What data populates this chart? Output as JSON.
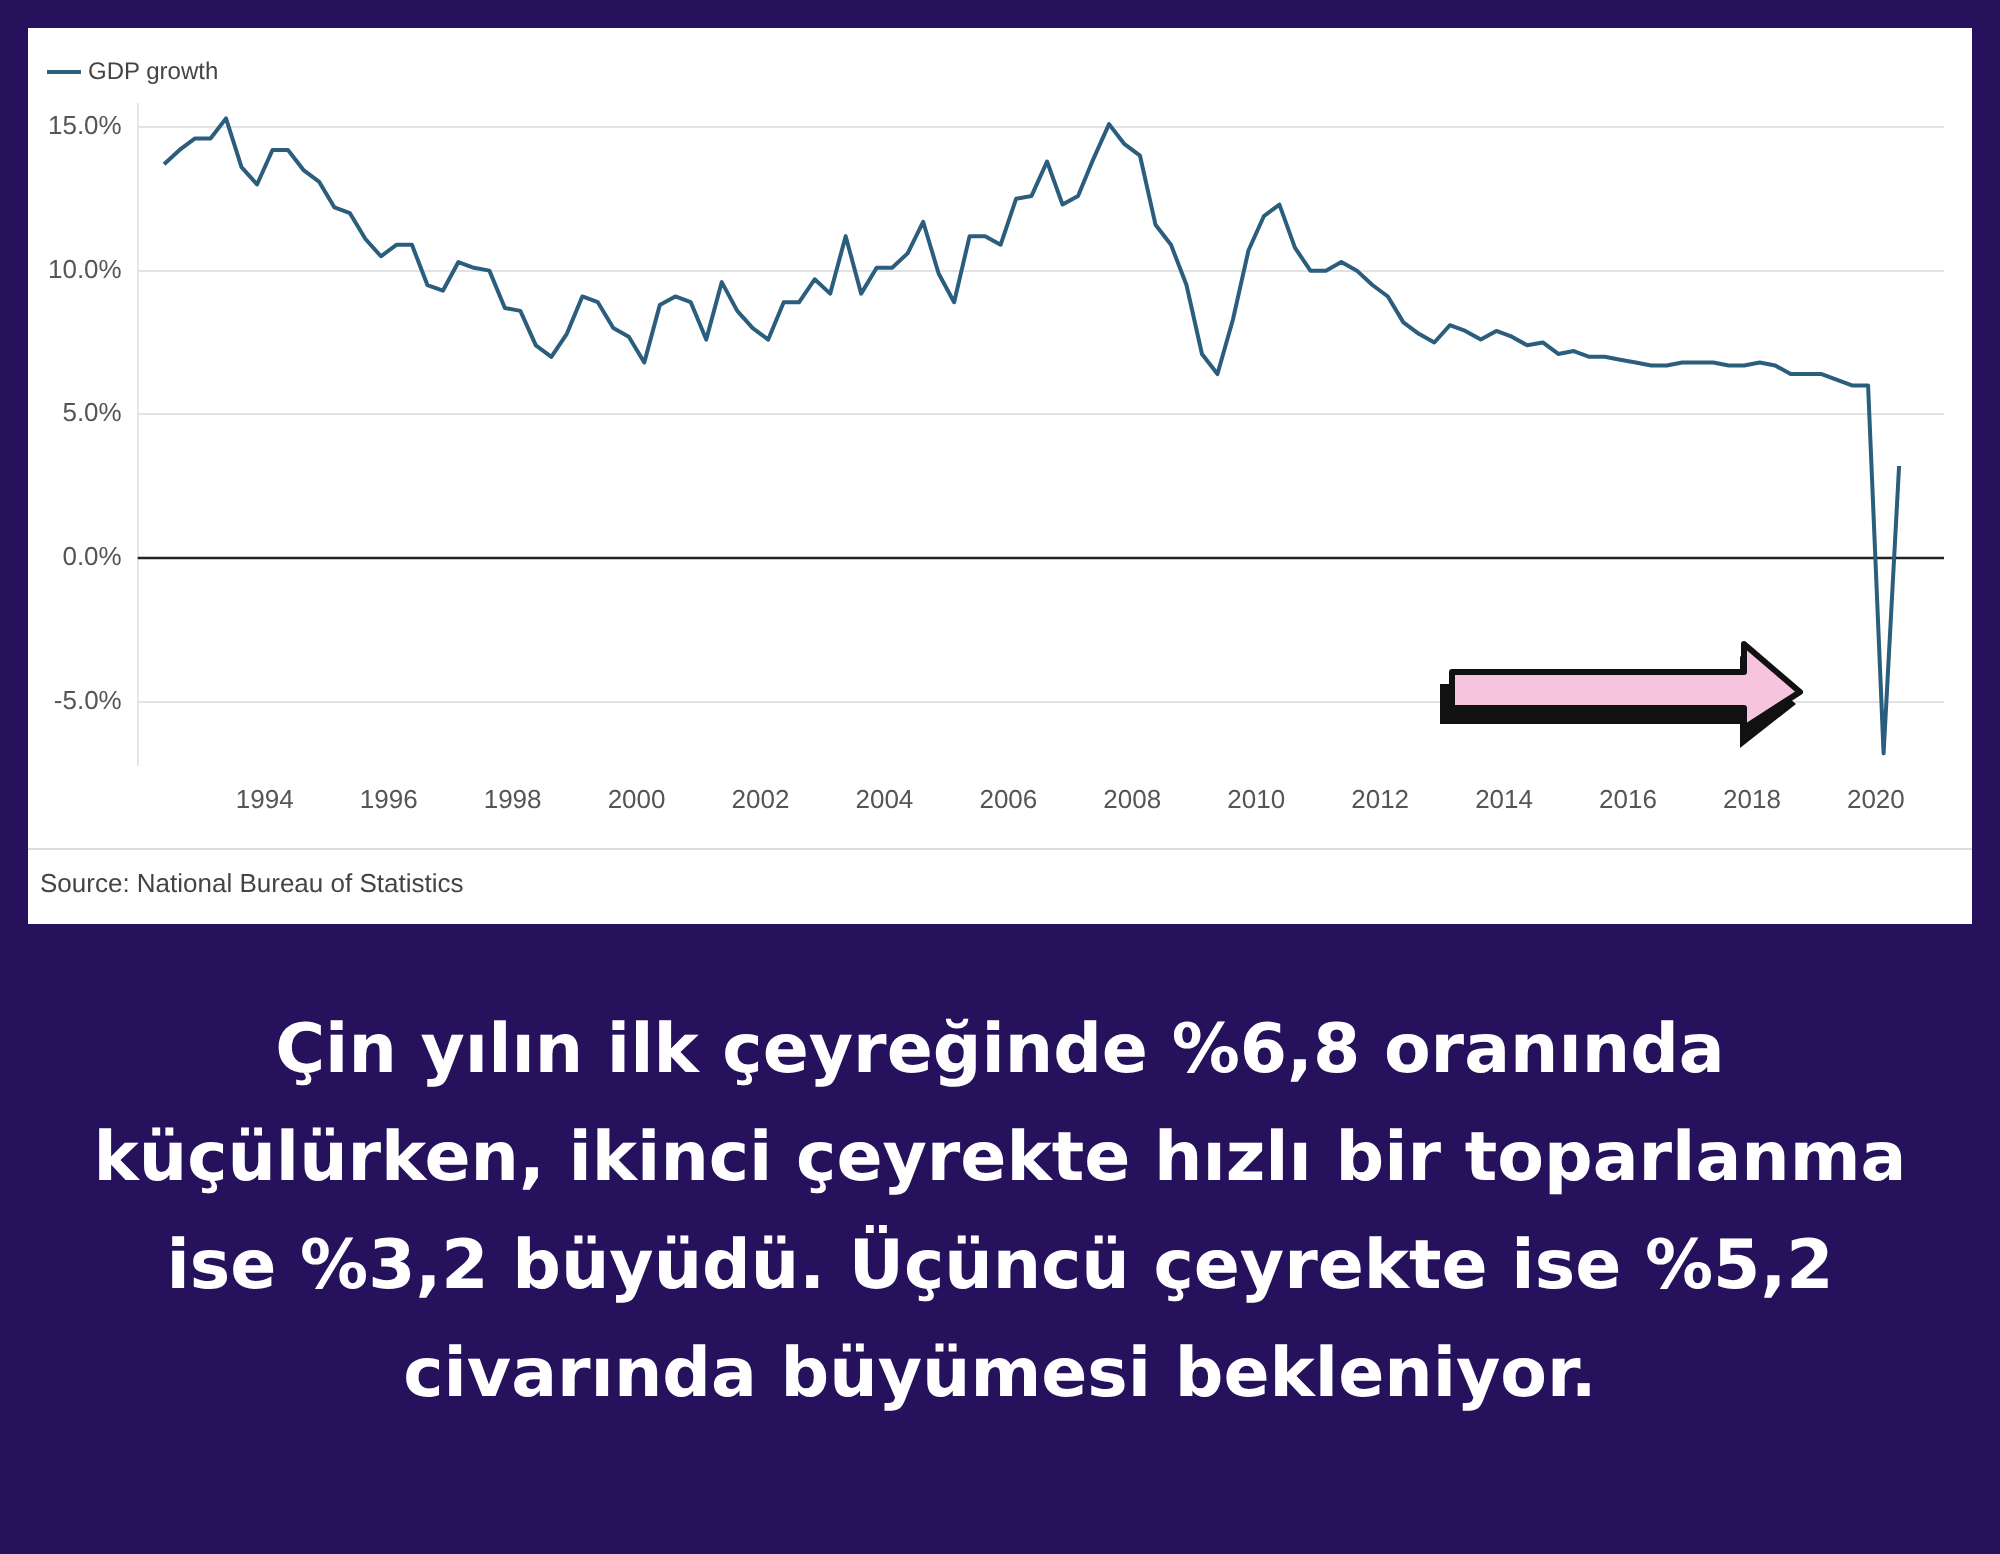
{
  "chart_data": {
    "type": "line",
    "x": [
      1992.375,
      1992.625,
      1992.875,
      1993.125,
      1993.375,
      1993.625,
      1993.875,
      1994.125,
      1994.375,
      1994.625,
      1994.875,
      1995.125,
      1995.375,
      1995.625,
      1995.875,
      1996.125,
      1996.375,
      1996.625,
      1996.875,
      1997.125,
      1997.375,
      1997.625,
      1997.875,
      1998.125,
      1998.375,
      1998.625,
      1998.875,
      1999.125,
      1999.375,
      1999.625,
      1999.875,
      2000.125,
      2000.375,
      2000.625,
      2000.875,
      2001.125,
      2001.375,
      2001.625,
      2001.875,
      2002.125,
      2002.375,
      2002.625,
      2002.875,
      2003.125,
      2003.375,
      2003.625,
      2003.875,
      2004.125,
      2004.375,
      2004.625,
      2004.875,
      2005.125,
      2005.375,
      2005.625,
      2005.875,
      2006.125,
      2006.375,
      2006.625,
      2006.875,
      2007.125,
      2007.375,
      2007.625,
      2007.875,
      2008.125,
      2008.375,
      2008.625,
      2008.875,
      2009.125,
      2009.375,
      2009.625,
      2009.875,
      2010.125,
      2010.375,
      2010.625,
      2010.875,
      2011.125,
      2011.375,
      2011.625,
      2011.875,
      2012.125,
      2012.375,
      2012.625,
      2012.875,
      2013.125,
      2013.375,
      2013.625,
      2013.875,
      2014.125,
      2014.375,
      2014.625,
      2014.875,
      2015.125,
      2015.375,
      2015.625,
      2015.875,
      2016.125,
      2016.375,
      2016.625,
      2016.875,
      2017.125,
      2017.375,
      2017.625,
      2017.875,
      2018.125,
      2018.375,
      2018.625,
      2018.875,
      2019.125,
      2019.375,
      2019.625,
      2019.875,
      2020.125,
      2020.375
    ],
    "series": [
      {
        "name": "GDP growth",
        "color": "#2b5d7d",
        "values": [
          13.7,
          14.2,
          14.6,
          14.6,
          15.3,
          13.6,
          13.0,
          14.2,
          14.2,
          13.5,
          13.1,
          12.2,
          12.0,
          11.1,
          10.5,
          10.9,
          10.9,
          9.5,
          9.3,
          10.3,
          10.1,
          10.0,
          8.7,
          8.6,
          7.4,
          7.0,
          7.8,
          9.1,
          8.9,
          8.0,
          7.7,
          6.8,
          8.8,
          9.1,
          8.9,
          7.6,
          9.6,
          8.6,
          8.0,
          7.6,
          8.9,
          8.9,
          9.7,
          9.2,
          11.2,
          9.2,
          10.1,
          10.1,
          10.6,
          11.7,
          9.9,
          8.9,
          11.2,
          11.2,
          10.9,
          12.5,
          12.6,
          13.8,
          12.3,
          12.6,
          13.9,
          15.1,
          14.4,
          14.0,
          11.6,
          10.9,
          9.5,
          7.1,
          6.4,
          8.3,
          10.7,
          11.9,
          12.3,
          10.8,
          10.0,
          10.0,
          10.3,
          10.0,
          9.5,
          9.1,
          8.2,
          7.8,
          7.5,
          8.1,
          7.9,
          7.6,
          7.9,
          7.7,
          7.4,
          7.5,
          7.1,
          7.2,
          7.0,
          7.0,
          6.9,
          6.8,
          6.7,
          6.7,
          6.8,
          6.8,
          6.8,
          6.7,
          6.7,
          6.8,
          6.7,
          6.4,
          6.4,
          6.4,
          6.2,
          6.0,
          6.0,
          -6.8,
          3.2
        ]
      }
    ],
    "xlim": [
      1991.95,
      2021.1
    ],
    "xticks": [
      1994,
      1996,
      1998,
      2000,
      2002,
      2004,
      2006,
      2008,
      2010,
      2012,
      2014,
      2016,
      2018,
      2020
    ],
    "ylim": [
      -7.2,
      15.8
    ],
    "yticks": [
      {
        "value": -5,
        "label": "-5.0%"
      },
      {
        "value": 0,
        "label": "0.0%"
      },
      {
        "value": 5,
        "label": "5.0%"
      },
      {
        "value": 10,
        "label": "10.0%"
      },
      {
        "value": 15,
        "label": "15.0%"
      }
    ],
    "ref_lines": [
      {
        "axis": "y",
        "value": 0,
        "color": "#222222"
      }
    ],
    "grid": "y",
    "legend": "top left",
    "marker": "none",
    "line_style": "solid",
    "annotations": [
      "Source: National Bureau of Statistics",
      "Çin yılın ilk çeyreğinde %6,8 oranında küçülürken, ikinci çeyrekte hızlı bir toparlanma ise %3,2 büyüdü. Üçüncü çeyrekte ise %5,2 civarında büyümesi bekleniyor."
    ]
  }
}
